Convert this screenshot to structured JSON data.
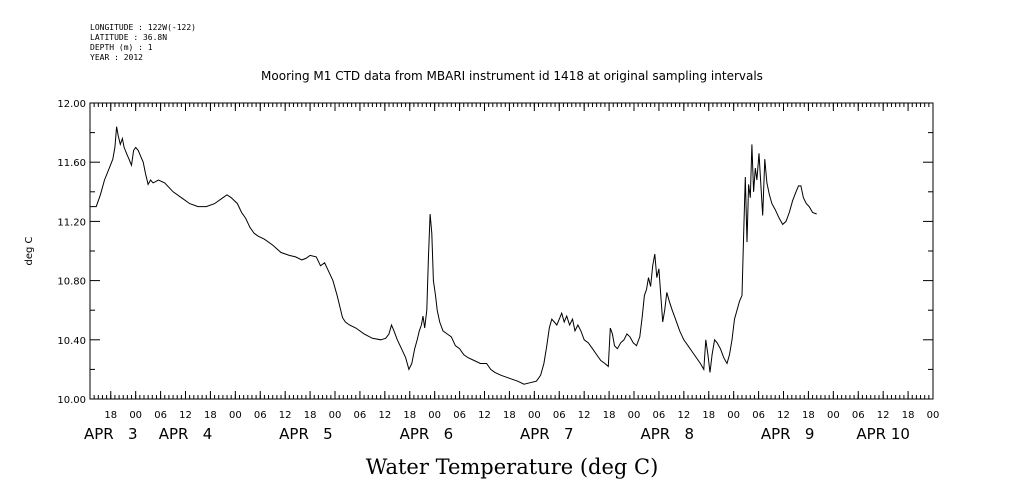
{
  "meta": {
    "longitude": "LONGITUDE : 122W(-122)",
    "latitude": "LATITUDE : 36.8N",
    "depth": "DEPTH (m) : 1",
    "year": "YEAR : 2012"
  },
  "chart_data": {
    "type": "line",
    "title": "Mooring M1 CTD data from MBARI instrument id 1418 at original sampling intervals",
    "xlabel": "Water Temperature (deg C)",
    "ylabel": "deg C",
    "ylim": [
      10.0,
      12.0
    ],
    "yticks": [
      10.0,
      10.4,
      10.8,
      11.2,
      11.6,
      12.0
    ],
    "ytick_labels": [
      "10.00",
      "10.40",
      "10.80",
      "11.20",
      "11.60",
      "12.00"
    ],
    "xlim_hours": [
      -11,
      192
    ],
    "xlim": [
      "APR 2 13:00",
      "APR 10 12:00"
    ],
    "hour_ticks": [
      {
        "h": -6,
        "label": "18"
      },
      {
        "h": 0,
        "label": "00"
      },
      {
        "h": 6,
        "label": "06"
      },
      {
        "h": 12,
        "label": "12"
      },
      {
        "h": 18,
        "label": "18"
      },
      {
        "h": 24,
        "label": "00"
      },
      {
        "h": 30,
        "label": "06"
      },
      {
        "h": 36,
        "label": "12"
      },
      {
        "h": 42,
        "label": "18"
      },
      {
        "h": 48,
        "label": "00"
      },
      {
        "h": 54,
        "label": "06"
      },
      {
        "h": 60,
        "label": "12"
      },
      {
        "h": 66,
        "label": "18"
      },
      {
        "h": 72,
        "label": "00"
      },
      {
        "h": 78,
        "label": "06"
      },
      {
        "h": 84,
        "label": "12"
      },
      {
        "h": 90,
        "label": "18"
      },
      {
        "h": 96,
        "label": "00"
      },
      {
        "h": 102,
        "label": "06"
      },
      {
        "h": 108,
        "label": "12"
      },
      {
        "h": 114,
        "label": "18"
      },
      {
        "h": 120,
        "label": "00"
      },
      {
        "h": 126,
        "label": "06"
      },
      {
        "h": 132,
        "label": "12"
      },
      {
        "h": 138,
        "label": "18"
      },
      {
        "h": 144,
        "label": "00"
      },
      {
        "h": 150,
        "label": "06"
      },
      {
        "h": 156,
        "label": "12"
      },
      {
        "h": 162,
        "label": "18"
      },
      {
        "h": 168,
        "label": "00"
      },
      {
        "h": 174,
        "label": "06"
      },
      {
        "h": 180,
        "label": "12"
      },
      {
        "h": 186,
        "label": "18"
      },
      {
        "h": 192,
        "label": "00"
      }
    ],
    "day_labels": [
      {
        "h": -6,
        "label": "APR   3"
      },
      {
        "h": 12,
        "label": "APR   4"
      },
      {
        "h": 41,
        "label": "APR   5"
      },
      {
        "h": 70,
        "label": "APR   6"
      },
      {
        "h": 99,
        "label": "APR   7"
      },
      {
        "h": 128,
        "label": "APR   8"
      },
      {
        "h": 157,
        "label": "APR   9"
      },
      {
        "h": 180,
        "label": "APR 10"
      }
    ],
    "series": [
      {
        "points": [
          [
            -11,
            11.3
          ],
          [
            -9.5,
            11.3
          ],
          [
            -8.5,
            11.38
          ],
          [
            -7.5,
            11.48
          ],
          [
            -6.5,
            11.55
          ],
          [
            -5.5,
            11.62
          ],
          [
            -5,
            11.7
          ],
          [
            -4.6,
            11.84
          ],
          [
            -4.2,
            11.78
          ],
          [
            -3.7,
            11.72
          ],
          [
            -3.2,
            11.76
          ],
          [
            -2.8,
            11.7
          ],
          [
            -2.2,
            11.66
          ],
          [
            -1.6,
            11.62
          ],
          [
            -1.0,
            11.58
          ],
          [
            -0.5,
            11.68
          ],
          [
            0,
            11.7
          ],
          [
            0.6,
            11.68
          ],
          [
            1.2,
            11.64
          ],
          [
            1.8,
            11.6
          ],
          [
            2.4,
            11.52
          ],
          [
            3.0,
            11.45
          ],
          [
            3.6,
            11.48
          ],
          [
            4.2,
            11.46
          ],
          [
            5.5,
            11.48
          ],
          [
            7,
            11.46
          ],
          [
            9,
            11.4
          ],
          [
            11,
            11.36
          ],
          [
            13,
            11.32
          ],
          [
            15,
            11.3
          ],
          [
            17,
            11.3
          ],
          [
            19,
            11.32
          ],
          [
            20.5,
            11.35
          ],
          [
            22,
            11.38
          ],
          [
            23,
            11.36
          ],
          [
            24.5,
            11.32
          ],
          [
            25.5,
            11.26
          ],
          [
            26.5,
            11.22
          ],
          [
            27.5,
            11.16
          ],
          [
            28.5,
            11.12
          ],
          [
            29.5,
            11.1
          ],
          [
            31,
            11.08
          ],
          [
            33,
            11.04
          ],
          [
            35,
            10.99
          ],
          [
            37,
            10.97
          ],
          [
            38.5,
            10.96
          ],
          [
            40,
            10.94
          ],
          [
            41,
            10.95
          ],
          [
            42,
            10.97
          ],
          [
            43.5,
            10.96
          ],
          [
            44.5,
            10.9
          ],
          [
            45.5,
            10.92
          ],
          [
            46.5,
            10.86
          ],
          [
            47.5,
            10.8
          ],
          [
            48.5,
            10.7
          ],
          [
            49.2,
            10.62
          ],
          [
            49.8,
            10.55
          ],
          [
            50.5,
            10.52
          ],
          [
            51.5,
            10.5
          ],
          [
            53,
            10.48
          ],
          [
            55,
            10.44
          ],
          [
            57,
            10.41
          ],
          [
            59,
            10.4
          ],
          [
            60.2,
            10.41
          ],
          [
            61,
            10.44
          ],
          [
            61.6,
            10.5
          ],
          [
            62.2,
            10.46
          ],
          [
            63,
            10.4
          ],
          [
            64,
            10.34
          ],
          [
            65,
            10.28
          ],
          [
            65.8,
            10.2
          ],
          [
            66.5,
            10.24
          ],
          [
            67.2,
            10.34
          ],
          [
            67.8,
            10.4
          ],
          [
            68.3,
            10.46
          ],
          [
            68.8,
            10.5
          ],
          [
            69.2,
            10.56
          ],
          [
            69.6,
            10.48
          ],
          [
            70.1,
            10.6
          ],
          [
            70.5,
            10.95
          ],
          [
            70.9,
            11.25
          ],
          [
            71.3,
            11.12
          ],
          [
            71.7,
            10.8
          ],
          [
            72.2,
            10.7
          ],
          [
            72.6,
            10.6
          ],
          [
            73.2,
            10.52
          ],
          [
            74,
            10.46
          ],
          [
            75,
            10.44
          ],
          [
            76,
            10.42
          ],
          [
            77,
            10.36
          ],
          [
            78,
            10.34
          ],
          [
            79,
            10.3
          ],
          [
            80,
            10.28
          ],
          [
            81.5,
            10.26
          ],
          [
            83,
            10.24
          ],
          [
            84.5,
            10.24
          ],
          [
            85.5,
            10.2
          ],
          [
            86.5,
            10.18
          ],
          [
            88,
            10.16
          ],
          [
            90,
            10.14
          ],
          [
            92,
            10.12
          ],
          [
            93.5,
            10.1
          ],
          [
            95,
            10.11
          ],
          [
            96.5,
            10.12
          ],
          [
            97.5,
            10.16
          ],
          [
            98.3,
            10.24
          ],
          [
            99,
            10.36
          ],
          [
            99.6,
            10.48
          ],
          [
            100.2,
            10.54
          ],
          [
            100.8,
            10.52
          ],
          [
            101.4,
            10.5
          ],
          [
            102,
            10.54
          ],
          [
            102.6,
            10.58
          ],
          [
            103.2,
            10.52
          ],
          [
            103.8,
            10.56
          ],
          [
            104.5,
            10.5
          ],
          [
            105.2,
            10.54
          ],
          [
            105.8,
            10.46
          ],
          [
            106.5,
            10.5
          ],
          [
            107.2,
            10.46
          ],
          [
            108,
            10.4
          ],
          [
            109,
            10.38
          ],
          [
            110,
            10.34
          ],
          [
            111,
            10.3
          ],
          [
            112,
            10.26
          ],
          [
            113,
            10.24
          ],
          [
            113.8,
            10.22
          ],
          [
            114.3,
            10.48
          ],
          [
            114.8,
            10.44
          ],
          [
            115.3,
            10.36
          ],
          [
            116,
            10.34
          ],
          [
            116.8,
            10.38
          ],
          [
            117.6,
            10.4
          ],
          [
            118.3,
            10.44
          ],
          [
            119,
            10.42
          ],
          [
            119.8,
            10.38
          ],
          [
            120.6,
            10.36
          ],
          [
            121.4,
            10.42
          ],
          [
            122,
            10.56
          ],
          [
            122.5,
            10.7
          ],
          [
            123,
            10.74
          ],
          [
            123.5,
            10.82
          ],
          [
            124,
            10.76
          ],
          [
            124.5,
            10.9
          ],
          [
            125,
            10.98
          ],
          [
            125.5,
            10.82
          ],
          [
            126,
            10.88
          ],
          [
            126.5,
            10.68
          ],
          [
            126.9,
            10.52
          ],
          [
            127.4,
            10.6
          ],
          [
            127.9,
            10.72
          ],
          [
            128.5,
            10.66
          ],
          [
            129.2,
            10.6
          ],
          [
            130,
            10.54
          ],
          [
            131,
            10.46
          ],
          [
            132,
            10.4
          ],
          [
            133,
            10.36
          ],
          [
            134,
            10.32
          ],
          [
            135,
            10.28
          ],
          [
            136,
            10.24
          ],
          [
            136.8,
            10.2
          ],
          [
            137.3,
            10.4
          ],
          [
            137.8,
            10.3
          ],
          [
            138.3,
            10.18
          ],
          [
            138.8,
            10.3
          ],
          [
            139.4,
            10.4
          ],
          [
            140,
            10.38
          ],
          [
            140.8,
            10.34
          ],
          [
            141.6,
            10.28
          ],
          [
            142.4,
            10.24
          ],
          [
            143,
            10.3
          ],
          [
            143.6,
            10.4
          ],
          [
            144.2,
            10.54
          ],
          [
            144.8,
            10.6
          ],
          [
            145.4,
            10.66
          ],
          [
            146,
            10.7
          ],
          [
            146.4,
            11.1
          ],
          [
            146.8,
            11.5
          ],
          [
            147.2,
            11.06
          ],
          [
            147.6,
            11.45
          ],
          [
            148,
            11.36
          ],
          [
            148.4,
            11.72
          ],
          [
            148.8,
            11.4
          ],
          [
            149.2,
            11.56
          ],
          [
            149.6,
            11.48
          ],
          [
            150.1,
            11.66
          ],
          [
            150.6,
            11.42
          ],
          [
            151,
            11.24
          ],
          [
            151.5,
            11.62
          ],
          [
            152,
            11.46
          ],
          [
            152.6,
            11.38
          ],
          [
            153.2,
            11.32
          ],
          [
            154,
            11.28
          ],
          [
            155,
            11.22
          ],
          [
            155.8,
            11.18
          ],
          [
            156.6,
            11.2
          ],
          [
            157.4,
            11.26
          ],
          [
            158.2,
            11.34
          ],
          [
            159,
            11.4
          ],
          [
            159.6,
            11.44
          ],
          [
            160.2,
            11.44
          ],
          [
            160.8,
            11.36
          ],
          [
            161.5,
            11.32
          ],
          [
            162.2,
            11.3
          ],
          [
            163,
            11.26
          ],
          [
            164,
            11.25
          ]
        ]
      }
    ]
  }
}
